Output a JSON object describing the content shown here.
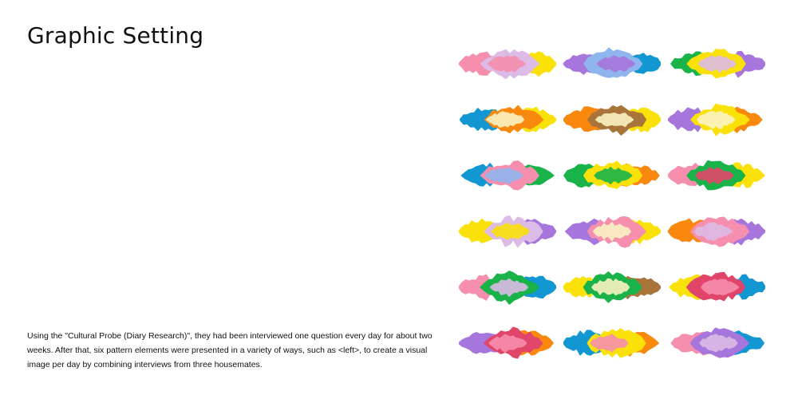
{
  "page": {
    "title": "Graphic Setting",
    "description": "Using the \"Cultural Probe (Diary Research)\", they had been interviewed one question every day for about two weeks. After that, six pattern elements were presented in a variety of ways, such as <left>, to create a visual image per day by combining interviews from three housemates."
  },
  "palette": {
    "pink": "#f68fae",
    "yellow": "#fbe10a",
    "violet": "#a776dc",
    "blue": "#1297d3",
    "green": "#19b34a",
    "orange": "#f9880f",
    "lavender": "#dcbbe6",
    "cream": "#fbf3c2",
    "red": "#e2456a",
    "brown": "#a8743a",
    "lightblue": "#8fb5ee"
  },
  "patterns": [
    {
      "id": 1,
      "layers": [
        "pink",
        "yellow",
        "lavender",
        "pink"
      ]
    },
    {
      "id": 2,
      "layers": [
        "violet",
        "blue",
        "lightblue",
        "violet"
      ]
    },
    {
      "id": 3,
      "layers": [
        "green",
        "violet",
        "yellow",
        "lavender"
      ]
    },
    {
      "id": 4,
      "layers": [
        "blue",
        "yellow",
        "orange",
        "cream"
      ]
    },
    {
      "id": 5,
      "layers": [
        "orange",
        "yellow",
        "brown",
        "cream"
      ]
    },
    {
      "id": 6,
      "layers": [
        "violet",
        "orange",
        "yellow",
        "cream"
      ]
    },
    {
      "id": 7,
      "layers": [
        "blue",
        "green",
        "pink",
        "lightblue"
      ]
    },
    {
      "id": 8,
      "layers": [
        "green",
        "orange",
        "yellow",
        "green"
      ]
    },
    {
      "id": 9,
      "layers": [
        "pink",
        "yellow",
        "green",
        "red"
      ]
    },
    {
      "id": 10,
      "layers": [
        "yellow",
        "violet",
        "lavender",
        "yellow"
      ]
    },
    {
      "id": 11,
      "layers": [
        "violet",
        "yellow",
        "pink",
        "cream"
      ]
    },
    {
      "id": 12,
      "layers": [
        "orange",
        "violet",
        "pink",
        "lavender"
      ]
    },
    {
      "id": 13,
      "layers": [
        "pink",
        "blue",
        "green",
        "lavender"
      ]
    },
    {
      "id": 14,
      "layers": [
        "yellow",
        "brown",
        "green",
        "cream"
      ]
    },
    {
      "id": 15,
      "layers": [
        "yellow",
        "blue",
        "red",
        "pink"
      ]
    },
    {
      "id": 16,
      "layers": [
        "violet",
        "orange",
        "red",
        "pink"
      ]
    },
    {
      "id": 17,
      "layers": [
        "blue",
        "orange",
        "yellow",
        "pink"
      ]
    },
    {
      "id": 18,
      "layers": [
        "pink",
        "blue",
        "violet",
        "lavender"
      ]
    }
  ]
}
